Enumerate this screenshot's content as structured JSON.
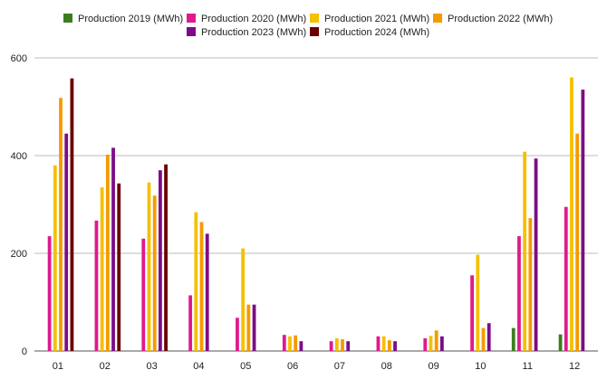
{
  "chart_data": {
    "type": "bar",
    "categories": [
      "01",
      "02",
      "03",
      "04",
      "05",
      "06",
      "07",
      "08",
      "09",
      "10",
      "11",
      "12"
    ],
    "series": [
      {
        "name": "Production 2019 (MWh)",
        "color": "#3a7d1f",
        "values": [
          0,
          0,
          0,
          0,
          0,
          0,
          0,
          0,
          0,
          0,
          47,
          34
        ]
      },
      {
        "name": "Production 2020 (MWh)",
        "color": "#e0198e",
        "values": [
          235,
          267,
          230,
          114,
          68,
          33,
          20,
          30,
          26,
          155,
          235,
          295
        ]
      },
      {
        "name": "Production 2021 (MWh)",
        "color": "#f5c000",
        "values": [
          380,
          335,
          345,
          284,
          210,
          30,
          26,
          30,
          31,
          197,
          408,
          560
        ]
      },
      {
        "name": "Production 2022 (MWh)",
        "color": "#f59a00",
        "values": [
          518,
          402,
          318,
          264,
          95,
          32,
          24,
          22,
          42,
          47,
          272,
          445
        ]
      },
      {
        "name": "Production 2023 (MWh)",
        "color": "#7b0d86",
        "values": [
          445,
          416,
          370,
          240,
          95,
          20,
          20,
          20,
          30,
          57,
          394,
          535
        ]
      },
      {
        "name": "Production 2024 (MWh)",
        "color": "#6b0000",
        "values": [
          558,
          343,
          382,
          0,
          0,
          0,
          0,
          0,
          0,
          0,
          0,
          0
        ]
      }
    ],
    "yticks": [
      0,
      200,
      400,
      600
    ],
    "ylim": [
      0,
      600
    ],
    "grid": true,
    "legend": "top"
  }
}
